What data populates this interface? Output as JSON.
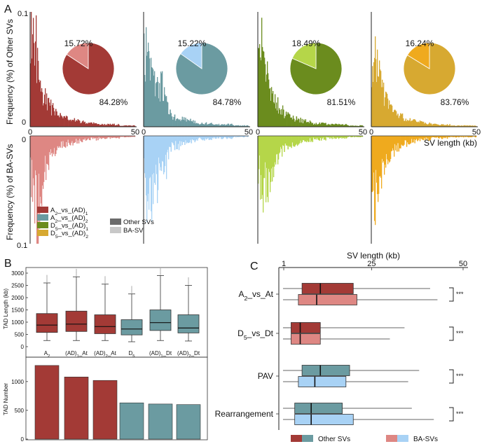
{
  "colors": {
    "a2_other": "#A33A36",
    "a2_ba": "#DE8783",
    "ad_other": "#6B9BA1",
    "ad_ba": "#A8D2F5",
    "d5_other": "#6B8C1E",
    "d5_ba": "#B5D649",
    "d5b_other": "#D7A931",
    "d5b_ba": "#EFAA1E",
    "grey_dark": "#6b6b6b",
    "grey_light": "#c8c8c8"
  },
  "panel_a": {
    "label": "A",
    "y_label_top": "Frequency (%) of Other SVs",
    "y_label_bottom": "Frequency (%) of BA-SVs",
    "y_top_max": "0.1",
    "y_zero": "0",
    "y_zero2": "0",
    "y_bottom_max": "0.1",
    "x_label": "SV length (kb)",
    "legend": {
      "items": [
        {
          "sub": "A",
          "idx": "2",
          "mid": "_vs_(AD)",
          "idx2": "1",
          "key": "a2_other"
        },
        {
          "sub": "A",
          "idx": "2",
          "mid": "_vs_(AD)",
          "idx2": "2",
          "key": "ad_other"
        },
        {
          "sub": "D",
          "idx": "5",
          "mid": "_vs_(AD)",
          "idx2": "1",
          "key": "d5_other"
        },
        {
          "sub": "D",
          "idx": "5",
          "mid": "_vs_(AD)",
          "idx2": "2",
          "key": "d5b_other"
        }
      ],
      "other": "Other SVs",
      "ba": "BA-SV"
    }
  },
  "chart_data": [
    {
      "type": "area",
      "title": "Panel A: SV length frequency distributions",
      "xlabel": "SV length (kb)",
      "ylabel": "Frequency (%)",
      "xlim": [
        0,
        50
      ],
      "ylim": [
        0,
        0.1
      ],
      "x_ticks": [
        "0",
        "50"
      ],
      "x": [
        0.5,
        1.5,
        2.5,
        3.5,
        4.5,
        5.5,
        6.5,
        7.5,
        8.5,
        9.5,
        10.5,
        11.5,
        12.5,
        14.0,
        16.0,
        18.0,
        20.0,
        22.5,
        25.0,
        27.5,
        30.0,
        35.0,
        40.0,
        45.0,
        49.5
      ],
      "series": [
        {
          "name": "A2_vs_(AD)1 Other SVs",
          "values": [
            0.092,
            0.085,
            0.07,
            0.055,
            0.045,
            0.034,
            0.028,
            0.024,
            0.02,
            0.018,
            0.016,
            0.014,
            0.012,
            0.01,
            0.008,
            0.007,
            0.006,
            0.005,
            0.004,
            0.003,
            0.003,
            0.002,
            0.002,
            0.001,
            0.001
          ]
        },
        {
          "name": "A2_vs_(AD)1 BA-SVs",
          "values": [
            0.04,
            0.05,
            0.062,
            0.085,
            0.07,
            0.045,
            0.035,
            0.03,
            0.025,
            0.02,
            0.017,
            0.014,
            0.012,
            0.01,
            0.009,
            0.007,
            0.006,
            0.005,
            0.004,
            0.003,
            0.003,
            0.002,
            0.002,
            0.001,
            0.001
          ]
        },
        {
          "name": "A2_vs_(AD)2 Other SVs",
          "values": [
            0.06,
            0.075,
            0.06,
            0.05,
            0.045,
            0.038,
            0.032,
            0.028,
            0.04,
            0.025,
            0.02,
            0.016,
            0.013,
            0.01,
            0.008,
            0.007,
            0.006,
            0.005,
            0.004,
            0.003,
            0.003,
            0.002,
            0.002,
            0.001,
            0.001
          ]
        },
        {
          "name": "A2_vs_(AD)2 BA-SVs",
          "values": [
            0.035,
            0.055,
            0.06,
            0.065,
            0.05,
            0.04,
            0.045,
            0.03,
            0.03,
            0.025,
            0.028,
            0.015,
            0.014,
            0.011,
            0.009,
            0.007,
            0.006,
            0.005,
            0.004,
            0.003,
            0.003,
            0.002,
            0.002,
            0.001,
            0.001
          ]
        },
        {
          "name": "D5_vs_(AD)1 Other SVs",
          "values": [
            0.055,
            0.07,
            0.062,
            0.05,
            0.042,
            0.036,
            0.03,
            0.026,
            0.022,
            0.019,
            0.016,
            0.014,
            0.012,
            0.01,
            0.008,
            0.007,
            0.006,
            0.005,
            0.004,
            0.003,
            0.003,
            0.002,
            0.002,
            0.001,
            0.001
          ]
        },
        {
          "name": "D5_vs_(AD)1 BA-SVs",
          "values": [
            0.03,
            0.045,
            0.05,
            0.048,
            0.042,
            0.035,
            0.03,
            0.028,
            0.022,
            0.02,
            0.017,
            0.014,
            0.012,
            0.01,
            0.008,
            0.007,
            0.006,
            0.005,
            0.004,
            0.003,
            0.003,
            0.002,
            0.002,
            0.001,
            0.001
          ]
        },
        {
          "name": "D5_vs_(AD)2 Other SVs",
          "values": [
            0.045,
            0.058,
            0.05,
            0.042,
            0.036,
            0.03,
            0.026,
            0.022,
            0.019,
            0.016,
            0.014,
            0.012,
            0.01,
            0.009,
            0.007,
            0.006,
            0.005,
            0.004,
            0.004,
            0.003,
            0.002,
            0.002,
            0.001,
            0.001,
            0.001
          ]
        },
        {
          "name": "D5_vs_(AD)2 BA-SVs",
          "values": [
            0.04,
            0.06,
            0.05,
            0.045,
            0.035,
            0.03,
            0.025,
            0.021,
            0.018,
            0.016,
            0.013,
            0.011,
            0.01,
            0.008,
            0.007,
            0.006,
            0.005,
            0.004,
            0.003,
            0.003,
            0.002,
            0.002,
            0.001,
            0.001,
            0.001
          ]
        }
      ]
    },
    {
      "type": "pie",
      "title": "Panel A insets: proportion of BA-SVs vs Other SVs",
      "slices": [
        {
          "group": "A2_vs_(AD)1",
          "ba_label": "15.72%",
          "other_label": "84.28%",
          "ba": 15.72,
          "other": 84.28,
          "ck": "a2"
        },
        {
          "group": "A2_vs_(AD)2",
          "ba_label": "15.22%",
          "other_label": "84.78%",
          "ba": 15.22,
          "other": 84.78,
          "ck": "ad"
        },
        {
          "group": "D5_vs_(AD)1",
          "ba_label": "18.49%",
          "other_label": "81.51%",
          "ba": 18.49,
          "other": 81.51,
          "ck": "d5"
        },
        {
          "group": "D5_vs_(AD)2",
          "ba_label": "16.24%",
          "other_label": "83.76%",
          "ba": 16.24,
          "other": 83.76,
          "ck": "d5b"
        }
      ]
    },
    {
      "type": "box",
      "title": "Panel B top: TAD length",
      "ylabel": "TAD Length (kb)",
      "ylim": [
        0,
        3200
      ],
      "y_ticks": [
        "0",
        "500",
        "1000",
        "1500",
        "2000",
        "2500",
        "3000"
      ],
      "categories": [
        {
          "main": "A",
          "sub": "2",
          "suffix": ""
        },
        {
          "main": "(AD)",
          "sub": "1",
          "suffix": "_At"
        },
        {
          "main": "(AD)",
          "sub": "2",
          "suffix": "_At"
        },
        {
          "main": "D",
          "sub": "5",
          "suffix": ""
        },
        {
          "main": "(AD)",
          "sub": "1",
          "suffix": "_Dt"
        },
        {
          "main": "(AD)",
          "sub": "2",
          "suffix": "_Dt"
        }
      ],
      "boxes": [
        {
          "lo": 250,
          "q1": 580,
          "med": 880,
          "q3": 1350,
          "hi": 2600,
          "ck": "a2_other"
        },
        {
          "lo": 250,
          "q1": 620,
          "med": 920,
          "q3": 1450,
          "hi": 2850,
          "ck": "a2_other"
        },
        {
          "lo": 250,
          "q1": 530,
          "med": 820,
          "q3": 1300,
          "hi": 2550,
          "ck": "a2_other"
        },
        {
          "lo": 200,
          "q1": 480,
          "med": 720,
          "q3": 1100,
          "hi": 2150,
          "ck": "ad_other"
        },
        {
          "lo": 250,
          "q1": 660,
          "med": 980,
          "q3": 1500,
          "hi": 2900,
          "ck": "ad_other"
        },
        {
          "lo": 230,
          "q1": 560,
          "med": 760,
          "q3": 1300,
          "hi": 2500,
          "ck": "ad_other"
        }
      ]
    },
    {
      "type": "bar",
      "title": "Panel B bottom: TAD number",
      "ylabel": "TAD Number",
      "ylim": [
        0,
        1400
      ],
      "y_ticks": [
        "0",
        "500",
        "1000"
      ],
      "values": [
        1280,
        1080,
        1020,
        630,
        610,
        600
      ],
      "bar_colors": [
        "a2_other",
        "a2_other",
        "a2_other",
        "ad_other",
        "ad_other",
        "ad_other"
      ]
    },
    {
      "type": "box",
      "title": "Panel C: SV length by category",
      "xlabel": "SV length (kb)",
      "xlim": [
        0,
        52
      ],
      "x_ticks": [
        "1",
        "25",
        "50"
      ],
      "tick_positions": [
        1,
        25,
        50
      ],
      "groups": [
        {
          "name": "A",
          "sub": "2",
          "rest": "_vs_At",
          "sig": "***",
          "boxes": [
            {
              "lo": 0.8,
              "q1": 6,
              "med": 11,
              "q3": 20,
              "hi": 41,
              "ck": "a2_other"
            },
            {
              "lo": 0.8,
              "q1": 5,
              "med": 10,
              "q3": 21,
              "hi": 43,
              "ck": "a2_ba"
            }
          ]
        },
        {
          "name": "D",
          "sub": "5",
          "rest": "_vs_Dt",
          "sig": "***",
          "boxes": [
            {
              "lo": 0.8,
              "q1": 3,
              "med": 5.5,
              "q3": 11,
              "hi": 34,
              "ck": "a2_other"
            },
            {
              "lo": 0.8,
              "q1": 3,
              "med": 5.5,
              "q3": 11,
              "hi": 30,
              "ck": "a2_ba"
            }
          ]
        },
        {
          "name": "PAV",
          "sub": "",
          "rest": "",
          "sig": "***",
          "boxes": [
            {
              "lo": 0.8,
              "q1": 6,
              "med": 11,
              "q3": 19,
              "hi": 38,
              "ck": "ad_other"
            },
            {
              "lo": 0.8,
              "q1": 5,
              "med": 9.5,
              "q3": 18,
              "hi": 35,
              "ck": "ad_ba"
            }
          ]
        },
        {
          "name": "Rearrangement",
          "sub": "",
          "rest": "",
          "sig": "***",
          "boxes": [
            {
              "lo": 0.8,
              "q1": 4,
              "med": 8.5,
              "q3": 17,
              "hi": 36,
              "ck": "ad_other"
            },
            {
              "lo": 0.8,
              "q1": 4,
              "med": 8.5,
              "q3": 20,
              "hi": 42,
              "ck": "ad_ba"
            }
          ]
        }
      ],
      "legend": {
        "other": "Other SVs",
        "ba": "BA-SVs"
      }
    }
  ],
  "panel_b": {
    "label": "B"
  },
  "panel_c": {
    "label": "C"
  }
}
